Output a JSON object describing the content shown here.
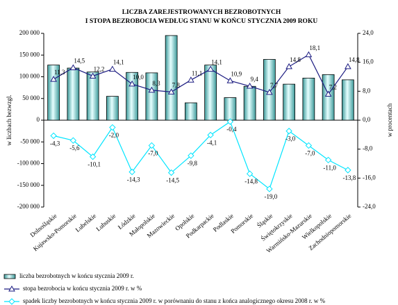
{
  "chart_data": {
    "type": "bar",
    "title": "LICZBA  ZAREJESTROWANYCH  BEZROBOTNYCH",
    "subtitle": "I  STOPA  BEZROBOCIA  WEDŁUG STANU W  KOŃCU STYCZNIA 2009  ROKU",
    "ylabel": "w liczbach bezwzgl.",
    "y2label": "w procentach",
    "categories": [
      "Dolnośląskie",
      "Kujawsko-Pomorskie",
      "Lubelskie",
      "Lubuskie",
      "Łódzkie",
      "Małopolskie",
      "Mazowieckie",
      "Opolskie",
      "Podkarpackie",
      "Podlaskie",
      "Pomorskie",
      "Śląskie",
      "Świętokrzyskie",
      "Warmińsko-Mazurskie",
      "Wielkopolskie",
      "Zachodniopomorskie"
    ],
    "series": [
      {
        "name": "liczba bezrobotnych w końcu stycznia 2009 r.",
        "type": "bar",
        "color": "#86d3d3",
        "axis": "y",
        "values": [
          127000,
          120000,
          111000,
          55000,
          110000,
          109000,
          195000,
          40000,
          127000,
          52000,
          78000,
          140000,
          83000,
          97000,
          105000,
          93000
        ]
      },
      {
        "name": "stopa bezrobocia w końcu stycznia 2009 r. w %",
        "type": "line",
        "marker": "triangle",
        "color": "#1a1a80",
        "axis": "y2",
        "values": [
          11.3,
          14.5,
          12.2,
          14.1,
          10.0,
          8.3,
          7.8,
          11.1,
          14.1,
          10.9,
          9.4,
          7.7,
          14.8,
          18.1,
          7.2,
          14.8
        ],
        "value_labels": [
          "11,3",
          "14,5",
          "12,2",
          "14,1",
          "10,0",
          "8,3",
          "7,8",
          "11,1",
          "14,1",
          "10,9",
          "9,4",
          "7,7",
          "14,8",
          "18,1",
          "7,2",
          "14,8"
        ]
      },
      {
        "name": "spadek liczby bezrobotnych w końcu stycznia 2009 r. w porównaniu do stanu z końca analogicznego okresu 2008 r. w %",
        "type": "line",
        "marker": "diamond",
        "color": "#00e5ff",
        "axis": "y2",
        "values": [
          -4.3,
          -5.6,
          -10.1,
          -2.0,
          -14.3,
          -7.0,
          -14.5,
          -9.8,
          -4.1,
          -0.4,
          -14.8,
          -19.0,
          -3.0,
          -7.0,
          -11.0,
          -13.8
        ],
        "value_labels": [
          "-4,3",
          "-5,6",
          "-10,1",
          "-2,0",
          "-14,3",
          "-7,0",
          "-14,5",
          "-9,8",
          "-4,1",
          "-0,4",
          "-14,8",
          "-19,0",
          "-3,0",
          "-7,0",
          "-11,0",
          "-13,8"
        ]
      }
    ],
    "ylim": [
      -200000,
      200000
    ],
    "yticks": [
      {
        "value": -200000,
        "label": "-200 000"
      },
      {
        "value": -150000,
        "label": "-150 000"
      },
      {
        "value": -100000,
        "label": "-100 000"
      },
      {
        "value": -50000,
        "label": "-50 000"
      },
      0,
      {
        "value": 50000,
        "label": "50 000"
      },
      {
        "value": 100000,
        "label": "100 000"
      },
      {
        "value": 150000,
        "label": "150 000"
      },
      {
        "value": 200000,
        "label": "200 000"
      }
    ],
    "y2lim": [
      -24,
      24
    ],
    "y2ticks": [
      {
        "value": -24,
        "label": "-24,0"
      },
      {
        "value": -16,
        "label": "-16,0"
      },
      {
        "value": -8,
        "label": "-8,0"
      },
      {
        "value": 0,
        "label": "0,0"
      },
      {
        "value": 8,
        "label": "8,0"
      },
      {
        "value": 16,
        "label": "16,0"
      },
      {
        "value": 24,
        "label": "24,0"
      }
    ]
  }
}
